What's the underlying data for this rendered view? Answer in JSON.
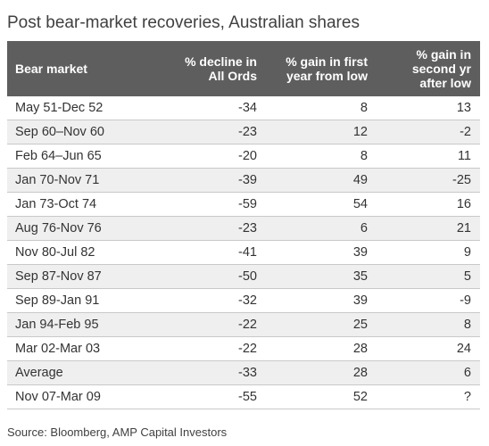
{
  "title": "Post bear-market recoveries, Australian shares",
  "source": "Source: Bloomberg, AMP Capital Investors",
  "columns": [
    [
      "Bear market"
    ],
    [
      "% decline in",
      "All Ords"
    ],
    [
      "% gain in first",
      "year from low"
    ],
    [
      "% gain in",
      "second yr",
      "after low"
    ]
  ],
  "rows": [
    [
      "May 51-Dec 52",
      "-34",
      "8",
      "13"
    ],
    [
      "Sep 60–Nov 60",
      "-23",
      "12",
      "-2"
    ],
    [
      "Feb 64–Jun 65",
      "-20",
      "8",
      "11"
    ],
    [
      "Jan 70-Nov 71",
      "-39",
      "49",
      "-25"
    ],
    [
      "Jan 73-Oct 74",
      "-59",
      "54",
      "16"
    ],
    [
      "Aug 76-Nov 76",
      "-23",
      "6",
      "21"
    ],
    [
      "Nov 80-Jul 82",
      "-41",
      "39",
      "9"
    ],
    [
      "Sep 87-Nov 87",
      "-50",
      "35",
      "5"
    ],
    [
      "Sep 89-Jan 91",
      "-32",
      "39",
      "-9"
    ],
    [
      "Jan 94-Feb 95",
      "-22",
      "25",
      "8"
    ],
    [
      "Mar 02-Mar 03",
      "-22",
      "28",
      "24"
    ],
    [
      "Average",
      "-33",
      "28",
      "6"
    ],
    [
      "Nov 07-Mar 09",
      "-55",
      "52",
      "?"
    ]
  ],
  "chart_data": {
    "type": "table",
    "title": "Post bear-market recoveries, Australian shares",
    "columns": [
      "Bear market",
      "% decline in All Ords",
      "% gain in first year from low",
      "% gain in second yr after low"
    ],
    "categories": [
      "May 51-Dec 52",
      "Sep 60–Nov 60",
      "Feb 64–Jun 65",
      "Jan 70-Nov 71",
      "Jan 73-Oct 74",
      "Aug 76-Nov 76",
      "Nov 80-Jul 82",
      "Sep 87-Nov 87",
      "Sep 89-Jan 91",
      "Jan 94-Feb 95",
      "Mar 02-Mar 03",
      "Average",
      "Nov 07-Mar 09"
    ],
    "series": [
      {
        "name": "% decline in All Ords",
        "values": [
          -34,
          -23,
          -20,
          -39,
          -59,
          -23,
          -41,
          -50,
          -32,
          -22,
          -22,
          -33,
          -55
        ]
      },
      {
        "name": "% gain in first year from low",
        "values": [
          8,
          12,
          8,
          49,
          54,
          6,
          39,
          35,
          39,
          25,
          28,
          28,
          52
        ]
      },
      {
        "name": "% gain in second yr after low",
        "values": [
          13,
          -2,
          11,
          -25,
          16,
          21,
          9,
          5,
          -9,
          8,
          24,
          6,
          null
        ]
      }
    ]
  },
  "colors": {
    "header_bg": "#5e5e5e",
    "row_shade": "#efefef",
    "rule": "#c8c8c8"
  }
}
